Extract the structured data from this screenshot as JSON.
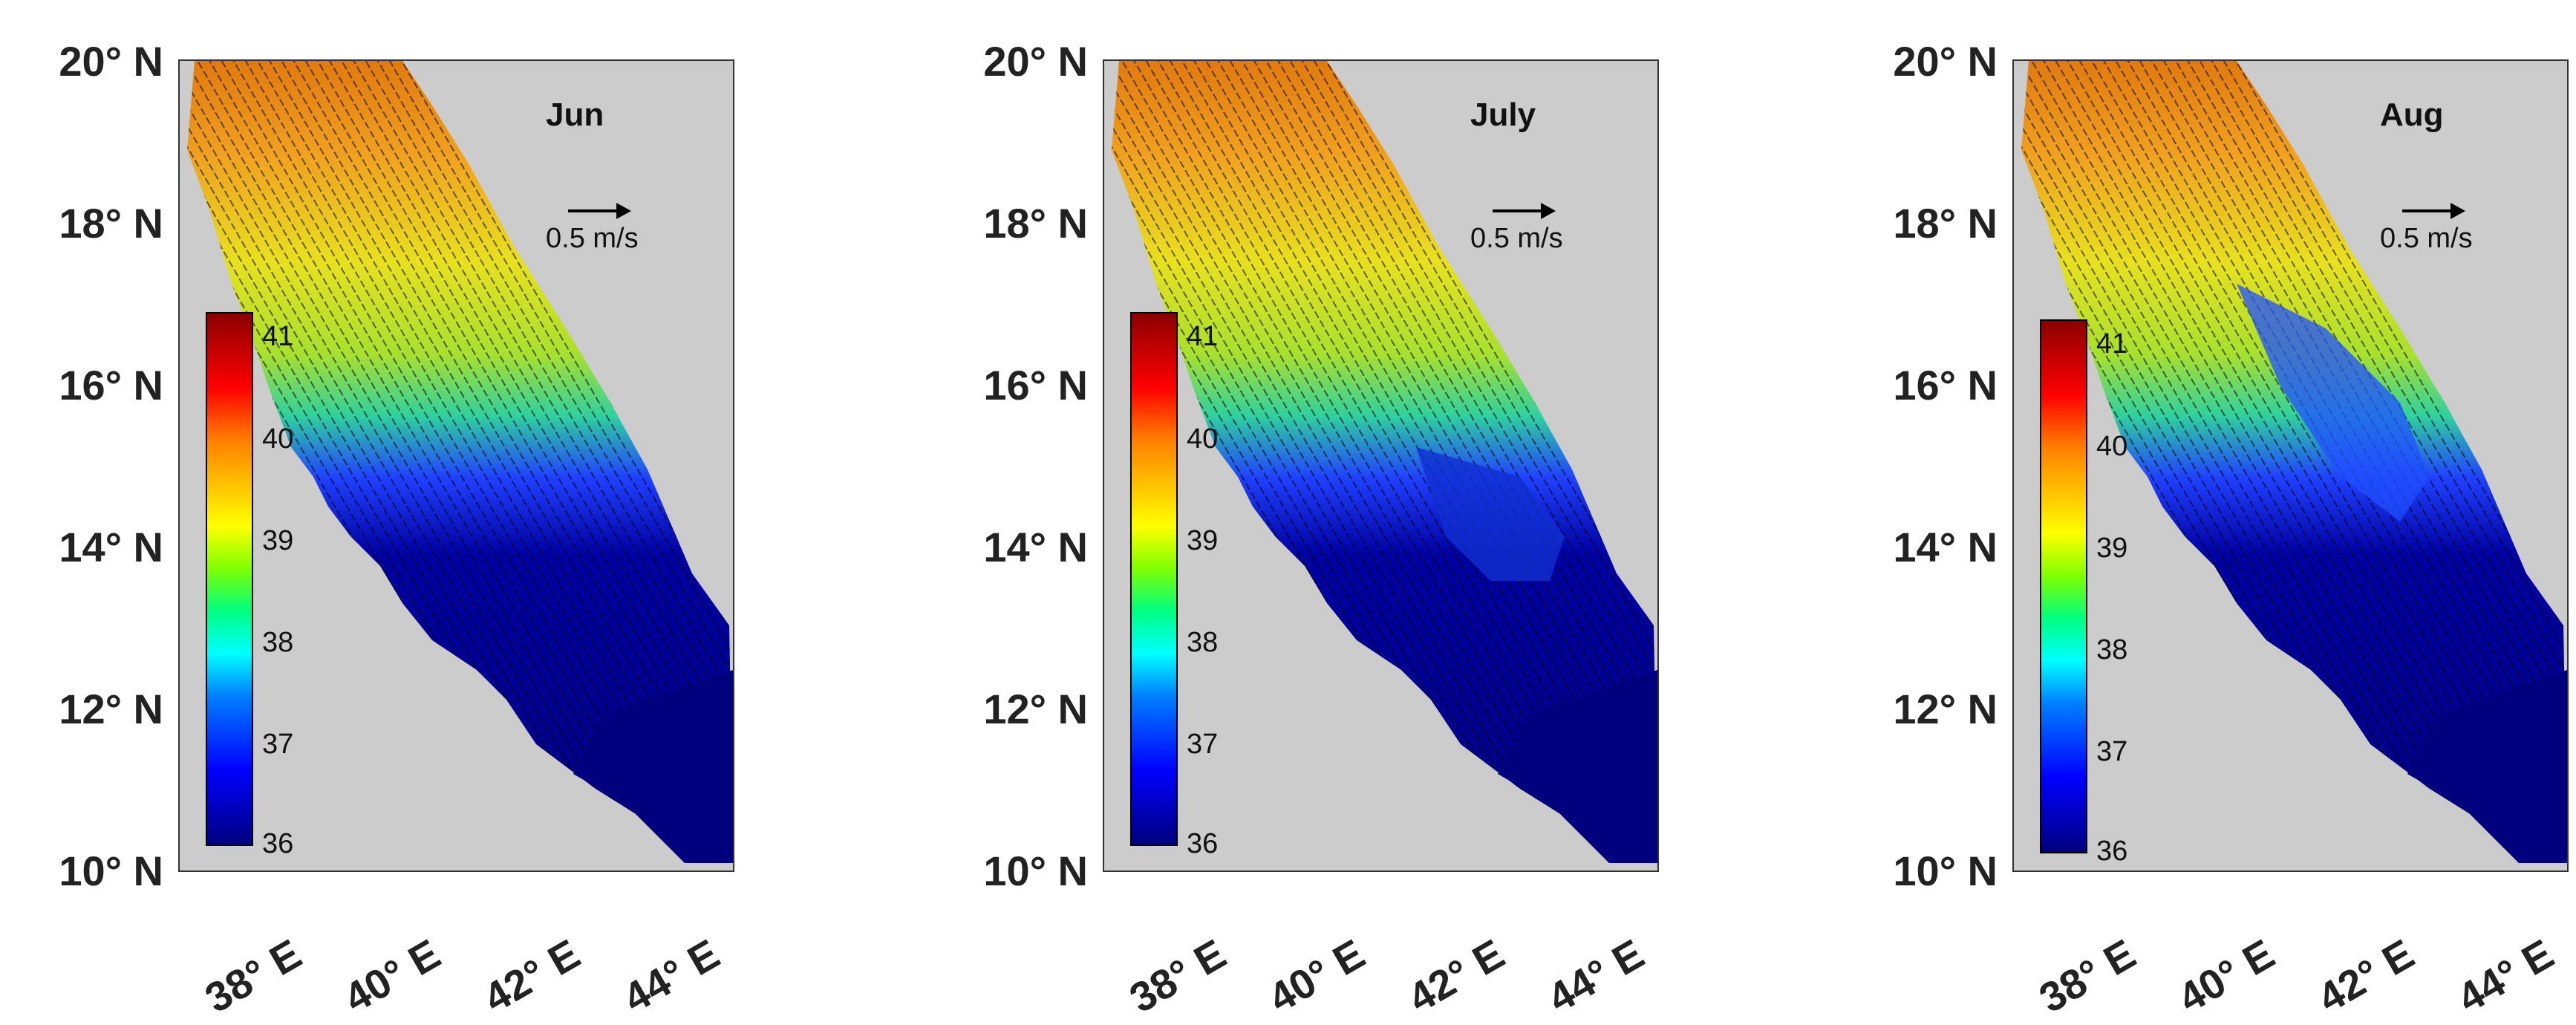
{
  "figure": {
    "y_ticks": [
      "20° N",
      "18° N",
      "16° N",
      "14° N",
      "12° N",
      "10° N"
    ],
    "x_ticks": [
      "38° E",
      "40° E",
      "42° E",
      "44° E"
    ],
    "reference_vector": "0.5 m/s",
    "colorbar_ticks": [
      "41",
      "40",
      "39",
      "38",
      "37",
      "36"
    ],
    "colors": {
      "land_mask": "#cccccc",
      "high": "#8b0000",
      "low": "#00007f"
    }
  },
  "panels": [
    {
      "month": "Jun"
    },
    {
      "month": "July"
    },
    {
      "month": "Aug"
    }
  ]
}
